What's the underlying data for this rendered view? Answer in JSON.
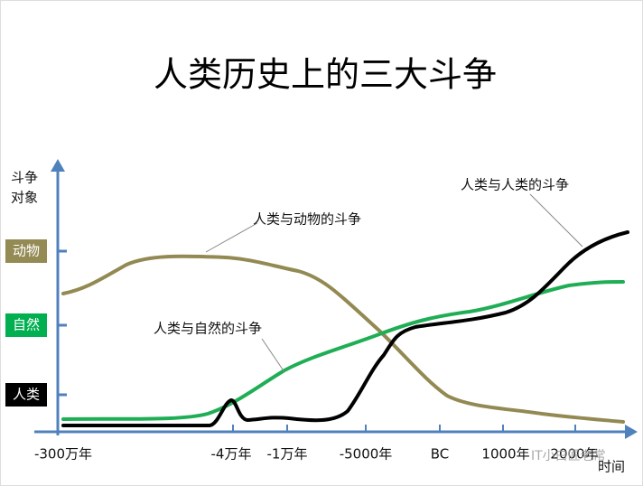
{
  "title": "人类历史上的三大斗争",
  "y_axis": {
    "label_lines": [
      "斗争",
      "对象"
    ],
    "levels": [
      "动物",
      "自然",
      "人类"
    ]
  },
  "x_axis": {
    "label": "时间",
    "ticks": [
      "-300万年",
      "-4万年",
      "-1万年",
      "-5000年",
      "BC",
      "1000年",
      "2000年"
    ]
  },
  "annotations": [
    "人类与动物的斗争",
    "人类与自然的斗争",
    "人类与人类的斗争"
  ],
  "watermark": "IT小白匠老常"
}
